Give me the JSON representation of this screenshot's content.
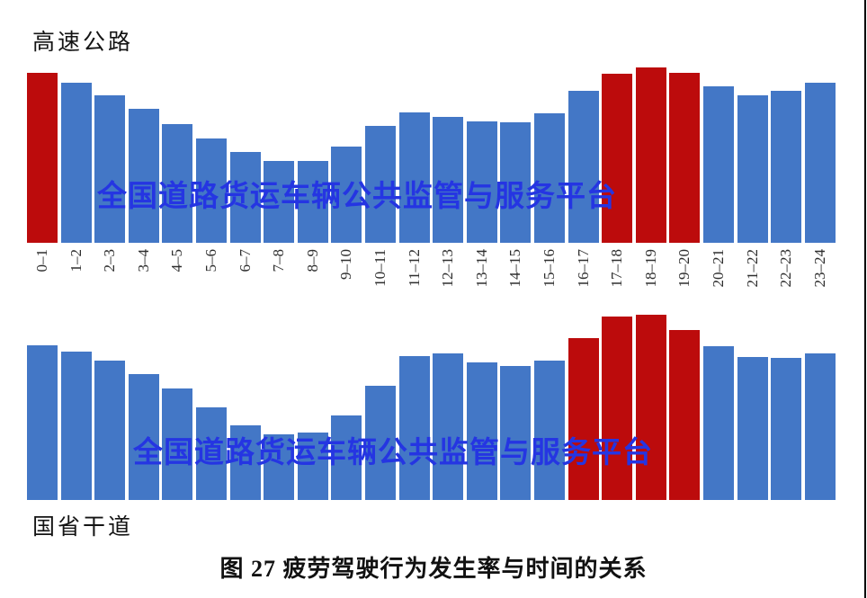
{
  "page": {
    "background": "#ffffff",
    "right_border_color": "#000000"
  },
  "caption": "图 27 疲劳驾驶行为发生率与时间的关系",
  "watermark": {
    "text": "全国道路货运车辆公共监管与服务平台",
    "color": "#2535E2"
  },
  "colors": {
    "bar_blue": "#4377C6",
    "bar_red": "#BC0B0C",
    "axis_label_text": "#2e2e2e",
    "title_text": "#141414"
  },
  "chart_data": [
    {
      "id": "expressway",
      "type": "bar",
      "title": "高速公路",
      "categories": [
        "0–1",
        "1–2",
        "2–3",
        "3–4",
        "4–5",
        "5–6",
        "6–7",
        "7–8",
        "8–9",
        "9–10",
        "10–11",
        "11–12",
        "12–13",
        "13–14",
        "14–15",
        "15–16",
        "16–17",
        "17–18",
        "18–19",
        "19–20",
        "20–21",
        "21–22",
        "22–23",
        "23–24"
      ],
      "values": [
        189,
        178,
        164,
        149,
        132,
        116,
        101,
        91,
        91,
        107,
        130,
        145,
        140,
        135,
        134,
        144,
        169,
        188,
        195,
        189,
        174,
        164,
        169,
        178
      ],
      "red_highlight_indices": [
        0,
        17,
        18,
        19
      ],
      "xlabel": "",
      "ylabel": "",
      "y_axis_visible": false,
      "grid": false,
      "legend": false,
      "x_axis_labels_visible": true,
      "units": "relative height (no numeric axis shown in figure)"
    },
    {
      "id": "national-provincial-road",
      "type": "bar",
      "title": "国省干道",
      "categories": [
        "0–1",
        "1–2",
        "2–3",
        "3–4",
        "4–5",
        "5–6",
        "6–7",
        "7–8",
        "8–9",
        "9–10",
        "10–11",
        "11–12",
        "12–13",
        "13–14",
        "14–15",
        "15–16",
        "16–17",
        "17–18",
        "18–19",
        "19–20",
        "20–21",
        "21–22",
        "22–23",
        "23–24"
      ],
      "values": [
        172,
        165,
        155,
        140,
        124,
        103,
        83,
        73,
        75,
        94,
        127,
        160,
        163,
        153,
        149,
        155,
        180,
        204,
        206,
        189,
        171,
        159,
        158,
        163
      ],
      "red_highlight_indices": [
        16,
        17,
        18,
        19
      ],
      "xlabel": "",
      "ylabel": "",
      "y_axis_visible": false,
      "grid": false,
      "legend": false,
      "x_axis_labels_visible": false,
      "units": "relative height (no numeric axis shown in figure)"
    }
  ]
}
